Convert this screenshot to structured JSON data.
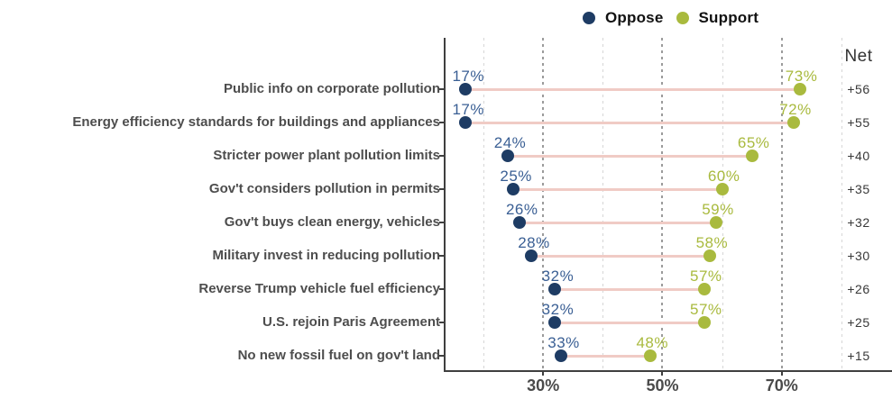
{
  "legend": {
    "items": [
      {
        "label": "Oppose",
        "color": "#1e3c64"
      },
      {
        "label": "Support",
        "color": "#a9ba3e"
      }
    ]
  },
  "net_header": "Net",
  "chart_data": {
    "type": "dumbbell",
    "series_names": [
      "Oppose",
      "Support"
    ],
    "rows": [
      {
        "label": "Public info on corporate pollution",
        "oppose": 17,
        "support": 73,
        "net": "+56"
      },
      {
        "label": "Energy efficiency standards for buildings and appliances",
        "oppose": 17,
        "support": 72,
        "net": "+55"
      },
      {
        "label": "Stricter power plant pollution limits",
        "oppose": 24,
        "support": 65,
        "net": "+40"
      },
      {
        "label": "Gov't considers pollution in permits",
        "oppose": 25,
        "support": 60,
        "net": "+35"
      },
      {
        "label": "Gov't buys clean energy, vehicles",
        "oppose": 26,
        "support": 59,
        "net": "+32"
      },
      {
        "label": "Military invest in reducing pollution",
        "oppose": 28,
        "support": 58,
        "net": "+30"
      },
      {
        "label": "Reverse Trump vehicle fuel efficiency",
        "oppose": 32,
        "support": 57,
        "net": "+26"
      },
      {
        "label": "U.S. rejoin Paris Agreement",
        "oppose": 32,
        "support": 57,
        "net": "+25"
      },
      {
        "label": "No new fossil fuel on gov't land",
        "oppose": 33,
        "support": 48,
        "net": "+15"
      }
    ],
    "axis": {
      "xmin": 13.64,
      "xmax": 88.79,
      "major_ticks": [
        {
          "value": 30,
          "label": "30%"
        },
        {
          "value": 50,
          "label": "50%"
        },
        {
          "value": 70,
          "label": "70%"
        }
      ],
      "minor_gridlines": [
        20,
        40,
        60,
        80
      ],
      "grid": "vertical-dashed"
    },
    "colors": {
      "oppose_dot": "#1e3c64",
      "oppose_text": "#3a5f94",
      "support_dot": "#a9ba3e",
      "support_text": "#a9ba3e",
      "connector_line": "#f0cbc5"
    }
  }
}
